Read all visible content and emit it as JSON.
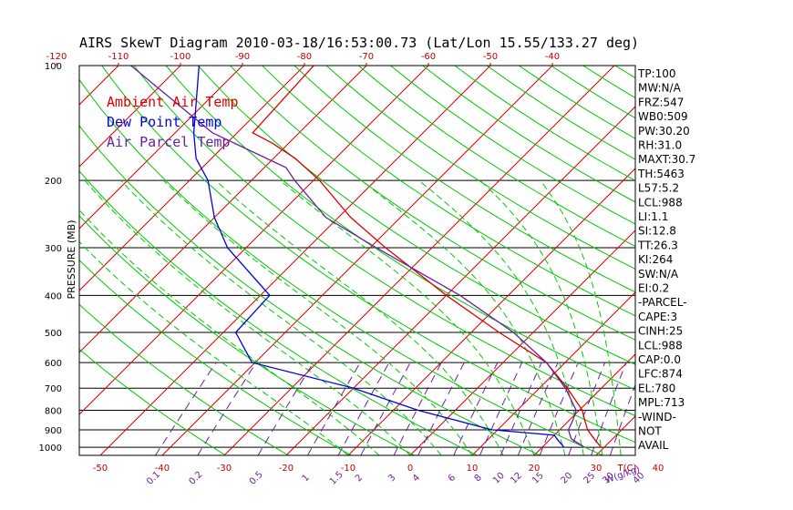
{
  "title": "AIRS SkewT Diagram 2010-03-18/16:53:00.73 (Lat/Lon 15.55/133.27 deg)",
  "colors": {
    "ambient": "#e00000",
    "dewpoint": "#0000e0",
    "parcel": "#6a1f9e",
    "isotherm": "#d40000",
    "dry_adiabat": "#00c800",
    "moist_adiabat": "#00c800",
    "mixing_ratio": "#6a1f9e",
    "isobar": "#000000"
  },
  "legend": [
    {
      "label": "Ambient Air Temp",
      "color": "#e00000"
    },
    {
      "label": "Dew Point Temp",
      "color": "#0000e0"
    },
    {
      "label": "Air Parcel Temp",
      "color": "#6a1f9e"
    }
  ],
  "indices": [
    "TP:100",
    "MW:N/A",
    "FRZ:547",
    "WB0:509",
    "PW:30.20",
    "RH:31.0",
    "MAXT:30.7",
    "TH:5463",
    "L57:5.2",
    "LCL:988",
    "LI:1.1",
    "SI:12.8",
    "TT:26.3",
    "KI:264",
    "SW:N/A",
    "EI:0.2",
    "-PARCEL-",
    "CAPE:3",
    "CINH:25",
    "LCL:988",
    "CAP:0.0",
    "LFC:874",
    "EL:780",
    "MPL:713",
    "-WIND-",
    "NOT",
    "AVAIL"
  ],
  "chart_data": {
    "type": "skew-t",
    "title": "AIRS SkewT Diagram 2010-03-18/16:53:00.73 (Lat/Lon 15.55/133.27 deg)",
    "ylabel": "PRESSURE (MB)",
    "xlabel_bottom_unit": "T(C)",
    "xlabel_mixing_unit": "W(g/kg)",
    "pressure_range_mb": [
      100,
      1050
    ],
    "pressure_ticks": [
      100,
      200,
      300,
      400,
      500,
      600,
      700,
      800,
      900,
      1000
    ],
    "top_temperature_ticks": [
      -120,
      -110,
      -100,
      -90,
      -80,
      -70,
      -60,
      -50,
      -40
    ],
    "bottom_temperature_ticks": [
      -50,
      -40,
      -30,
      -20,
      -10,
      0,
      10,
      20,
      30,
      40
    ],
    "mixing_ratio_ticks": [
      "0.1",
      "0.2",
      "0.5",
      "1",
      "1.5",
      "2",
      "3",
      "4",
      "6",
      "8",
      "10",
      "12",
      "15",
      "20",
      "25",
      "30",
      "40"
    ],
    "mixing_ratio_values": [
      0.1,
      0.2,
      0.5,
      1,
      1.5,
      2,
      3,
      4,
      6,
      8,
      10,
      12,
      15,
      20,
      25,
      30,
      40
    ],
    "isotherms_c": [
      -150,
      -140,
      -130,
      -120,
      -110,
      -100,
      -90,
      -80,
      -70,
      -60,
      -50,
      -40,
      -30,
      -20,
      -10,
      0,
      10,
      20,
      30,
      40,
      50
    ],
    "dry_adiabats_k": [
      240,
      250,
      260,
      270,
      280,
      290,
      300,
      310,
      320,
      330,
      340,
      350,
      360,
      370,
      380,
      390,
      400,
      410,
      420,
      430,
      440,
      450,
      460,
      470,
      480
    ],
    "moist_adiabats_c": [
      -10,
      -5,
      0,
      5,
      10,
      15,
      20,
      25,
      28,
      31,
      34
    ],
    "series": [
      {
        "name": "Ambient Air Temp",
        "points": [
          [
            1000,
            29.5
          ],
          [
            950,
            27.0
          ],
          [
            900,
            24.5
          ],
          [
            850,
            22.5
          ],
          [
            800,
            20.5
          ],
          [
            700,
            14.5
          ],
          [
            600,
            7.0
          ],
          [
            500,
            -5.5
          ],
          [
            400,
            -20.0
          ],
          [
            300,
            -37.5
          ],
          [
            250,
            -48.0
          ],
          [
            200,
            -59.0
          ],
          [
            175,
            -66.5
          ],
          [
            160,
            -72.5
          ],
          [
            150,
            -77.5
          ],
          [
            100,
            -78.5
          ]
        ]
      },
      {
        "name": "Dew Point Temp",
        "points": [
          [
            1000,
            23.5
          ],
          [
            960,
            21.5
          ],
          [
            930,
            20.0
          ],
          [
            900,
            9.0
          ],
          [
            800,
            -6.0
          ],
          [
            700,
            -20.0
          ],
          [
            600,
            -40.5
          ],
          [
            500,
            -48.0
          ],
          [
            400,
            -48.5
          ],
          [
            300,
            -63.0
          ],
          [
            250,
            -70.0
          ],
          [
            200,
            -77.0
          ],
          [
            175,
            -82.5
          ],
          [
            150,
            -87.0
          ],
          [
            100,
            -97.0
          ]
        ]
      },
      {
        "name": "Air Parcel Temp",
        "points": [
          [
            1000,
            26.8
          ],
          [
            950,
            23.3
          ],
          [
            900,
            21.4
          ],
          [
            850,
            20.6
          ],
          [
            800,
            19.5
          ],
          [
            700,
            14.2
          ],
          [
            600,
            7.0
          ],
          [
            500,
            -3.2
          ],
          [
            400,
            -17.8
          ],
          [
            300,
            -39.0
          ],
          [
            250,
            -52.0
          ],
          [
            200,
            -63.0
          ],
          [
            185,
            -66.5
          ],
          [
            150,
            -84.0
          ],
          [
            100,
            -108.0
          ]
        ]
      }
    ]
  }
}
